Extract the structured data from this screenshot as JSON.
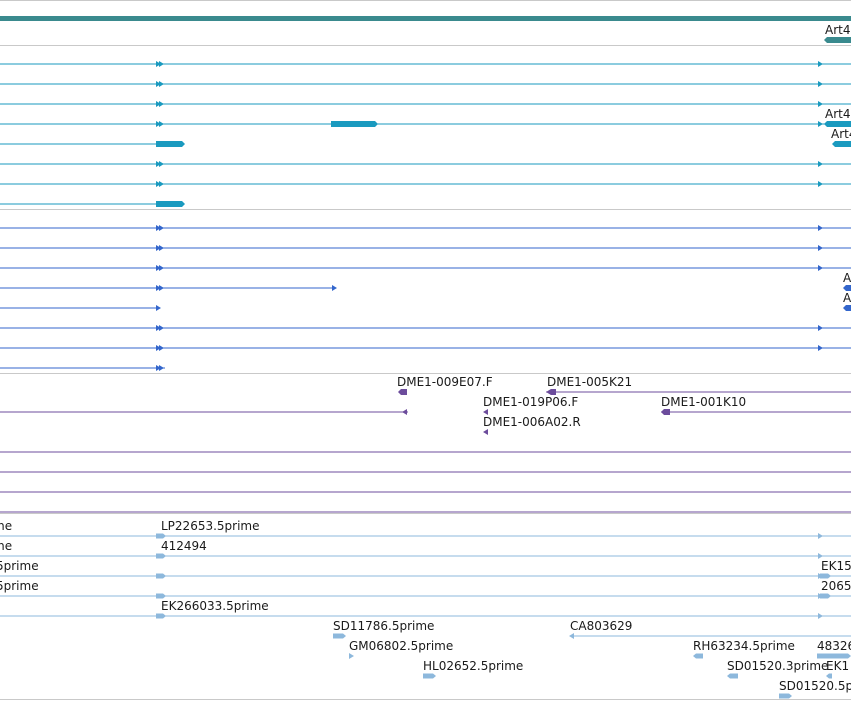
{
  "colors": {
    "gene": "#3a8a8e",
    "transcript": "#1a9abf",
    "transcript_dark": "#3366cc",
    "clone": "#6c4c9c",
    "est": "#8db8dc",
    "separator": "#c9c9c9"
  },
  "gene_track": {
    "name": "Art4"
  },
  "transcripts": [
    {
      "label": "Art4"
    },
    {
      "label": "Art4"
    }
  ],
  "transcripts_alt": [
    {
      "label": "A"
    },
    {
      "label": "A"
    }
  ],
  "clones": [
    "DME1-009E07.F",
    "DME1-005K21",
    "DME1-019P06.F",
    "DME1-001K10",
    "DME1-006A02.R"
  ],
  "ests": [
    "me",
    "me",
    "5prime",
    "5prime",
    "LP22653.5prime",
    "412494",
    "EK266033.5prime",
    "EK15",
    "2065",
    "SD11786.5prime",
    "CA803629",
    "GM06802.5prime",
    "RH63234.5prime",
    "48326",
    "HL02652.5prime",
    "SD01520.3prime",
    "EK1",
    "SD01520.5p"
  ]
}
